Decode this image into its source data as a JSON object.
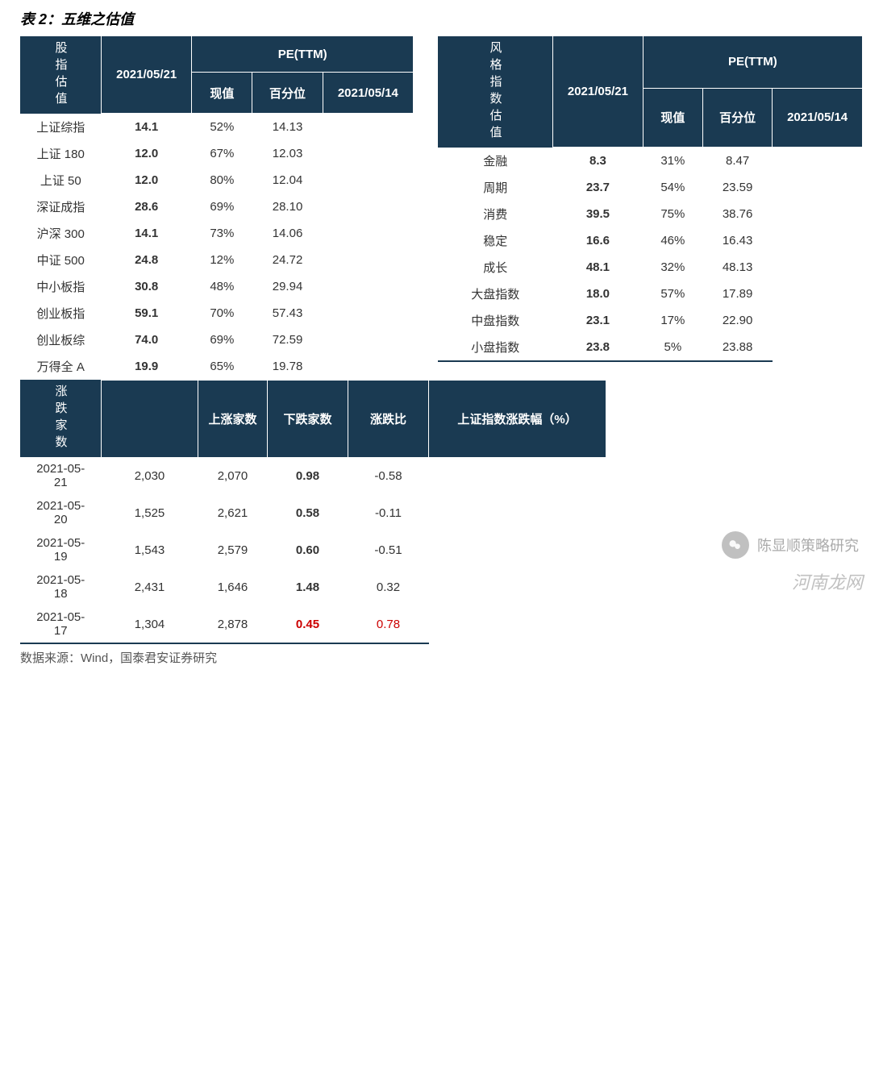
{
  "title": "表 2：五维之估值",
  "colors": {
    "header_bg": "#1a3a52",
    "header_fg": "#ffffff",
    "text": "#333333",
    "red": "#cc0000",
    "bg": "#ffffff"
  },
  "table1": {
    "sidebar_label": "股指估值",
    "date_header": "2021/05/21",
    "pe_header": "PE(TTM)",
    "subheaders": [
      "现值",
      "百分位",
      "2021/05/14"
    ],
    "rows": [
      {
        "label": "上证综指",
        "val": "14.1",
        "pct": "52%",
        "prev": "14.13"
      },
      {
        "label": "上证 180",
        "val": "12.0",
        "pct": "67%",
        "prev": "12.03"
      },
      {
        "label": "上证 50",
        "val": "12.0",
        "pct": "80%",
        "prev": "12.04"
      },
      {
        "label": "深证成指",
        "val": "28.6",
        "pct": "69%",
        "prev": "28.10"
      },
      {
        "label": "沪深 300",
        "val": "14.1",
        "pct": "73%",
        "prev": "14.06"
      },
      {
        "label": "中证 500",
        "val": "24.8",
        "pct": "12%",
        "prev": "24.72"
      },
      {
        "label": "中小板指",
        "val": "30.8",
        "pct": "48%",
        "prev": "29.94"
      },
      {
        "label": "创业板指",
        "val": "59.1",
        "pct": "70%",
        "prev": "57.43"
      },
      {
        "label": "创业板综",
        "val": "74.0",
        "pct": "69%",
        "prev": "72.59"
      },
      {
        "label": "万得全 A",
        "val": "19.9",
        "pct": "65%",
        "prev": "19.78"
      }
    ]
  },
  "table2": {
    "sidebar_label": "风格指数估值",
    "date_header": "2021/05/21",
    "pe_header": "PE(TTM)",
    "subheaders": [
      "现值",
      "百分位",
      "2021/05/14"
    ],
    "rows": [
      {
        "label": "金融",
        "val": "8.3",
        "pct": "31%",
        "prev": "8.47"
      },
      {
        "label": "周期",
        "val": "23.7",
        "pct": "54%",
        "prev": "23.59"
      },
      {
        "label": "消费",
        "val": "39.5",
        "pct": "75%",
        "prev": "38.76"
      },
      {
        "label": "稳定",
        "val": "16.6",
        "pct": "46%",
        "prev": "16.43"
      },
      {
        "label": "成长",
        "val": "48.1",
        "pct": "32%",
        "prev": "48.13"
      },
      {
        "label": "大盘指数",
        "val": "18.0",
        "pct": "57%",
        "prev": "17.89"
      },
      {
        "label": "中盘指数",
        "val": "23.1",
        "pct": "17%",
        "prev": "22.90"
      },
      {
        "label": "小盘指数",
        "val": "23.8",
        "pct": "5%",
        "prev": "23.88"
      }
    ]
  },
  "table3": {
    "sidebar_label": "涨跌家数",
    "headers": [
      "",
      "上涨家数",
      "下跌家数",
      "涨跌比",
      "上证指数涨跌幅（%）"
    ],
    "rows": [
      {
        "date": "2021-05-21",
        "up": "2,030",
        "down": "2,070",
        "ratio": "0.98",
        "chg": "-0.58",
        "red": false
      },
      {
        "date": "2021-05-20",
        "up": "1,525",
        "down": "2,621",
        "ratio": "0.58",
        "chg": "-0.11",
        "red": false
      },
      {
        "date": "2021-05-19",
        "up": "1,543",
        "down": "2,579",
        "ratio": "0.60",
        "chg": "-0.51",
        "red": false
      },
      {
        "date": "2021-05-18",
        "up": "2,431",
        "down": "1,646",
        "ratio": "1.48",
        "chg": "0.32",
        "red": false
      },
      {
        "date": "2021-05-17",
        "up": "1,304",
        "down": "2,878",
        "ratio": "0.45",
        "chg": "0.78",
        "red": true
      }
    ]
  },
  "source": "数据来源：Wind，国泰君安证券研究",
  "watermark1": "陈显顺策略研究",
  "watermark2": "河南龙网"
}
